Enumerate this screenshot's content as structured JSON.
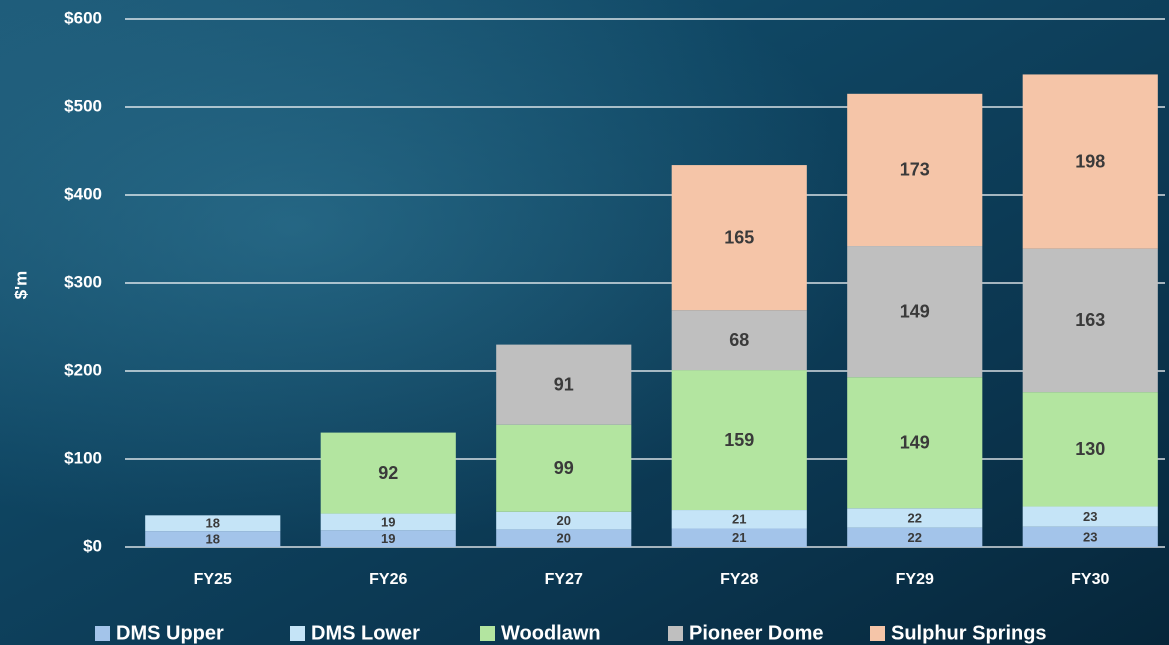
{
  "chart_data": {
    "type": "stacked_bar",
    "y_axis_label": "$'m",
    "categories": [
      "FY25",
      "FY26",
      "FY27",
      "FY28",
      "FY29",
      "FY30"
    ],
    "series": [
      {
        "name": "DMS Upper",
        "color": "#a3c4ea",
        "values": [
          18,
          19,
          20,
          21,
          22,
          23
        ]
      },
      {
        "name": "DMS Lower",
        "color": "#c5e4f7",
        "values": [
          18,
          19,
          20,
          21,
          22,
          23
        ]
      },
      {
        "name": "Woodlawn",
        "color": "#b3e5a0",
        "values": [
          null,
          92,
          99,
          159,
          149,
          130
        ]
      },
      {
        "name": "Pioneer Dome",
        "color": "#bfbfbf",
        "values": [
          null,
          null,
          91,
          68,
          149,
          163
        ]
      },
      {
        "name": "Sulphur Springs",
        "color": "#f5c5a8",
        "values": [
          null,
          null,
          null,
          165,
          173,
          198
        ]
      }
    ],
    "ylim": [
      0,
      600
    ],
    "yticks": [
      {
        "value": 0,
        "label": "$0"
      },
      {
        "value": 100,
        "label": "$100"
      },
      {
        "value": 200,
        "label": "$200"
      },
      {
        "value": 300,
        "label": "$300"
      },
      {
        "value": 400,
        "label": "$400"
      },
      {
        "value": 500,
        "label": "$500"
      },
      {
        "value": 600,
        "label": "$600"
      }
    ],
    "grid": true,
    "legend": "bottom"
  }
}
